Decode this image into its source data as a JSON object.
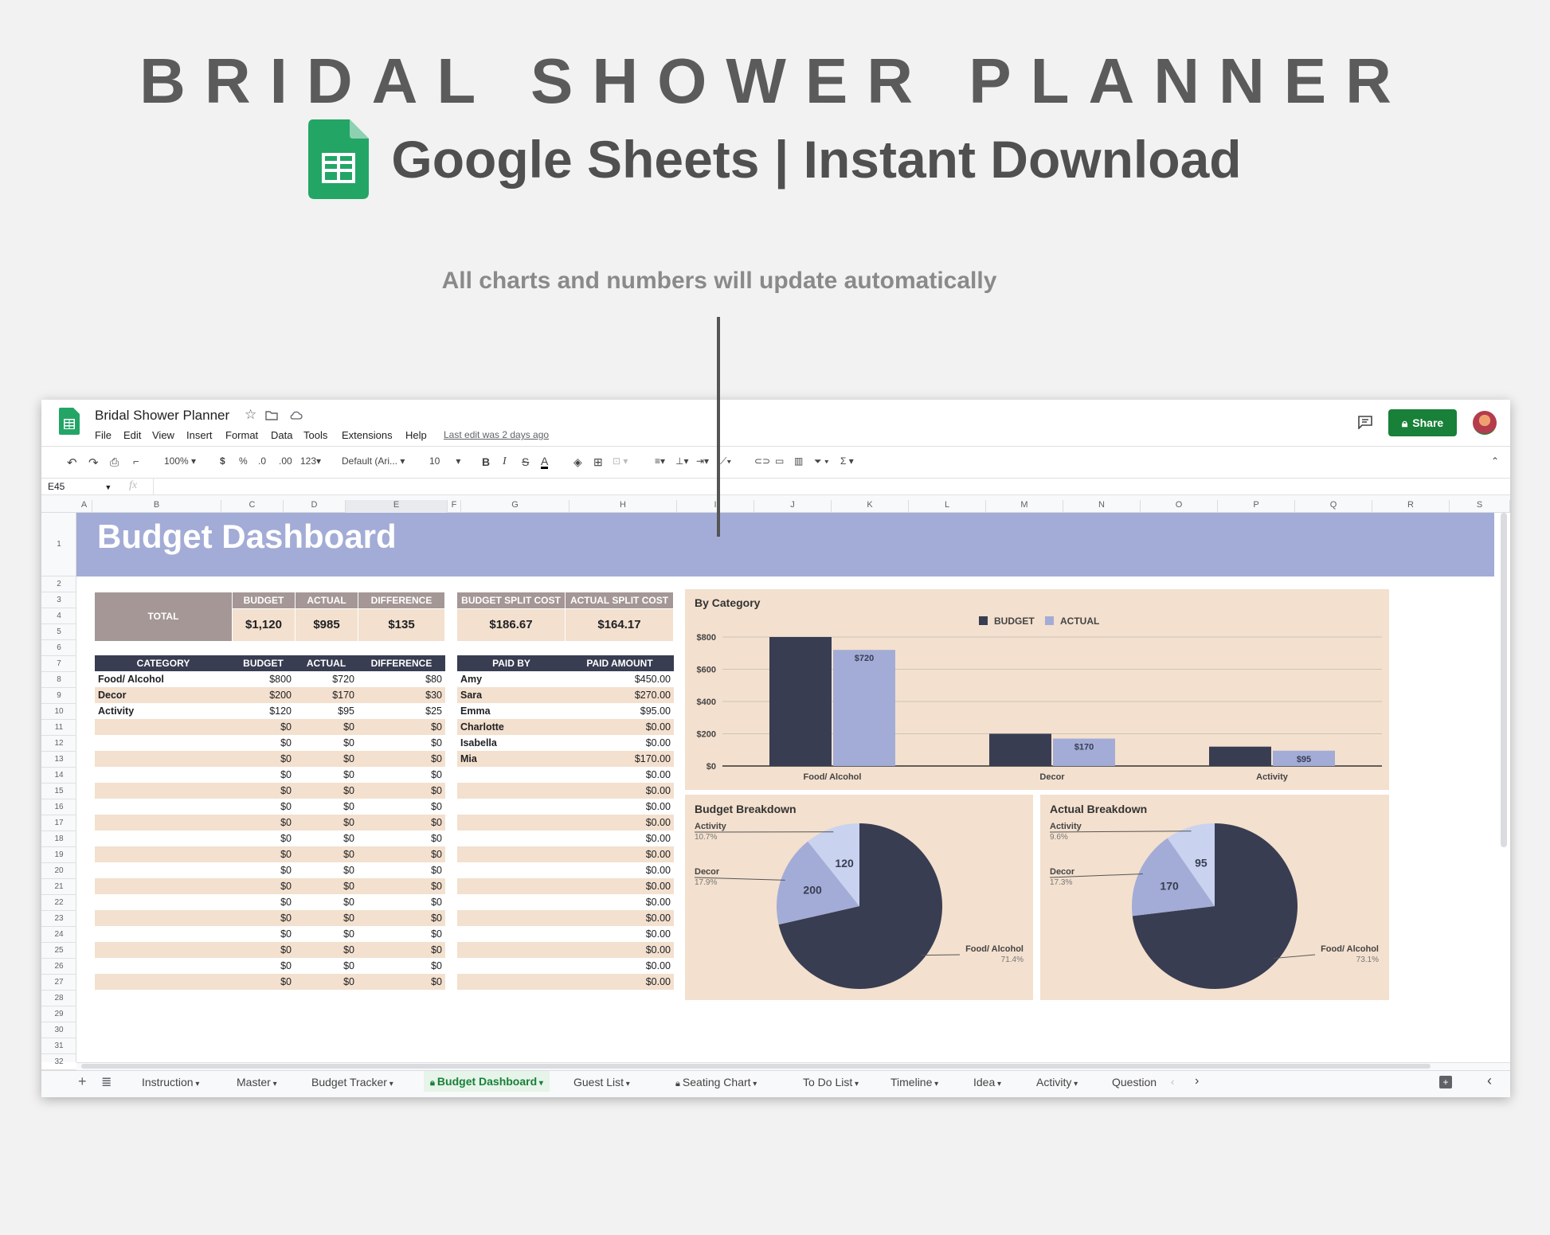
{
  "hero": {
    "title": "BRIDAL SHOWER PLANNER",
    "subtitle": "Google Sheets | Instant Download",
    "note": "All charts and numbers will update automatically"
  },
  "app": {
    "doc_title": "Bridal Shower Planner",
    "menu": [
      "File",
      "Edit",
      "View",
      "Insert",
      "Format",
      "Data",
      "Tools",
      "Extensions",
      "Help"
    ],
    "last_edit": "Last edit was 2 days ago",
    "share_label": "Share",
    "zoom": "100%",
    "currency": "$",
    "percent": "%",
    "dec_less": ".0",
    "dec_more": ".00",
    "number_format": "123",
    "font": "Default (Ari...",
    "font_size": "10",
    "cell_ref": "E45",
    "fx": "fx"
  },
  "columns": [
    "A",
    "B",
    "C",
    "D",
    "E",
    "F",
    "G",
    "H",
    "I",
    "J",
    "K",
    "L",
    "M",
    "N",
    "O",
    "P",
    "Q",
    "R",
    "S"
  ],
  "rows": [
    "1",
    "2",
    "3",
    "4",
    "5",
    "6",
    "7",
    "8",
    "9",
    "10",
    "11",
    "12",
    "13",
    "14",
    "15",
    "16",
    "17",
    "18",
    "19",
    "20",
    "21",
    "22",
    "23",
    "24",
    "25",
    "26",
    "27",
    "28",
    "29",
    "30",
    "31",
    "32"
  ],
  "dashboard": {
    "title": "Budget Dashboard",
    "total_label": "TOTAL",
    "summary_headers": [
      "BUDGET",
      "ACTUAL",
      "DIFFERENCE"
    ],
    "summary_values": [
      "$1,120",
      "$985",
      "$135"
    ],
    "split_headers": [
      "BUDGET SPLIT COST",
      "ACTUAL SPLIT COST"
    ],
    "split_values": [
      "$186.67",
      "$164.17"
    ],
    "category_headers": [
      "CATEGORY",
      "BUDGET",
      "ACTUAL",
      "DIFFERENCE"
    ],
    "categories": [
      [
        "Food/ Alcohol",
        "$800",
        "$720",
        "$80"
      ],
      [
        "Decor",
        "$200",
        "$170",
        "$30"
      ],
      [
        "Activity",
        "$120",
        "$95",
        "$25"
      ],
      [
        "",
        "$0",
        "$0",
        "$0"
      ],
      [
        "",
        "$0",
        "$0",
        "$0"
      ],
      [
        "",
        "$0",
        "$0",
        "$0"
      ],
      [
        "",
        "$0",
        "$0",
        "$0"
      ],
      [
        "",
        "$0",
        "$0",
        "$0"
      ],
      [
        "",
        "$0",
        "$0",
        "$0"
      ],
      [
        "",
        "$0",
        "$0",
        "$0"
      ],
      [
        "",
        "$0",
        "$0",
        "$0"
      ],
      [
        "",
        "$0",
        "$0",
        "$0"
      ],
      [
        "",
        "$0",
        "$0",
        "$0"
      ],
      [
        "",
        "$0",
        "$0",
        "$0"
      ],
      [
        "",
        "$0",
        "$0",
        "$0"
      ],
      [
        "",
        "$0",
        "$0",
        "$0"
      ],
      [
        "",
        "$0",
        "$0",
        "$0"
      ],
      [
        "",
        "$0",
        "$0",
        "$0"
      ],
      [
        "",
        "$0",
        "$0",
        "$0"
      ],
      [
        "",
        "$0",
        "$0",
        "$0"
      ]
    ],
    "paid_headers": [
      "PAID BY",
      "PAID AMOUNT"
    ],
    "paid": [
      [
        "Amy",
        "$450.00"
      ],
      [
        "Sara",
        "$270.00"
      ],
      [
        "Emma",
        "$95.00"
      ],
      [
        "Charlotte",
        "$0.00"
      ],
      [
        "Isabella",
        "$0.00"
      ],
      [
        "Mia",
        "$170.00"
      ],
      [
        "",
        "$0.00"
      ],
      [
        "",
        "$0.00"
      ],
      [
        "",
        "$0.00"
      ],
      [
        "",
        "$0.00"
      ],
      [
        "",
        "$0.00"
      ],
      [
        "",
        "$0.00"
      ],
      [
        "",
        "$0.00"
      ],
      [
        "",
        "$0.00"
      ],
      [
        "",
        "$0.00"
      ],
      [
        "",
        "$0.00"
      ],
      [
        "",
        "$0.00"
      ],
      [
        "",
        "$0.00"
      ],
      [
        "",
        "$0.00"
      ],
      [
        "",
        "$0.00"
      ]
    ]
  },
  "chart_data": [
    {
      "type": "bar",
      "title": "By Category",
      "categories": [
        "Food/ Alcohol",
        "Decor",
        "Activity"
      ],
      "series": [
        {
          "name": "BUDGET",
          "values": [
            800,
            200,
            120
          ],
          "color": "#383d52"
        },
        {
          "name": "ACTUAL",
          "values": [
            720,
            170,
            95
          ],
          "color": "#a3acd6"
        }
      ],
      "data_labels": {
        "ACTUAL": [
          "$720",
          "$170",
          "$95"
        ]
      },
      "yticks": [
        "$800",
        "$600",
        "$400",
        "$200",
        "$0"
      ],
      "ylim": [
        0,
        800
      ],
      "legend": "top",
      "grid": true
    },
    {
      "type": "pie",
      "title": "Budget Breakdown",
      "labels": [
        "Food/ Alcohol",
        "Decor",
        "Activity"
      ],
      "values": [
        800,
        200,
        120
      ],
      "value_labels": [
        "",
        "200",
        "120"
      ],
      "percents": [
        "71.4%",
        "17.9%",
        "10.7%"
      ],
      "colors": [
        "#383d52",
        "#a3acd6",
        "#c9d2ef"
      ]
    },
    {
      "type": "pie",
      "title": "Actual Breakdown",
      "labels": [
        "Food/ Alcohol",
        "Decor",
        "Activity"
      ],
      "values": [
        720,
        170,
        95
      ],
      "value_labels": [
        "",
        "170",
        "95"
      ],
      "percents": [
        "73.1%",
        "17.3%",
        "9.6%"
      ],
      "colors": [
        "#383d52",
        "#a3acd6",
        "#c9d2ef"
      ]
    }
  ],
  "tabs": [
    "Instruction",
    "Master",
    "Budget Tracker",
    "Budget Dashboard",
    "Guest List",
    "Seating Chart",
    "To Do List",
    "Timeline",
    "Idea",
    "Activity",
    "Question"
  ],
  "active_tab": "Budget Dashboard",
  "colors": {
    "title_band": "#a3acd6",
    "header": "#383d52",
    "stripe": "#f3e0ce",
    "summary": "#a49796",
    "share": "#188038",
    "sheets_green": "#23a566"
  }
}
